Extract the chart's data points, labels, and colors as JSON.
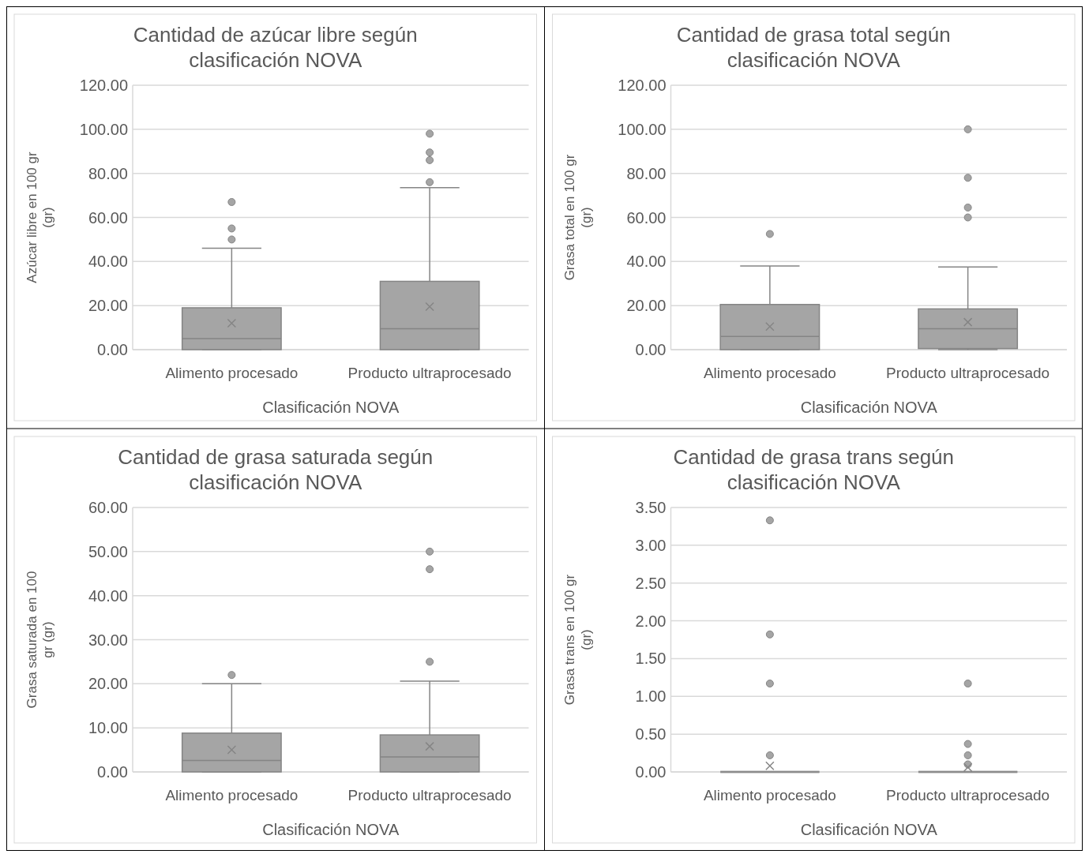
{
  "chart_data": [
    {
      "type": "box",
      "title": "Cantidad de azúcar libre según clasificación NOVA",
      "xlabel": "Clasificación NOVA",
      "ylabel": "Azúcar libre en 100 gr (gr)",
      "categories": [
        "Alimento procesado",
        "Producto ultraprocesado"
      ],
      "color": "#a5a5a5",
      "grid": "y",
      "ylim": [
        0,
        120
      ],
      "yticks": [
        {
          "value": 0,
          "label": "0.00"
        },
        {
          "value": 20,
          "label": "20.00"
        },
        {
          "value": 40,
          "label": "40.00"
        },
        {
          "value": 60,
          "label": "60.00"
        },
        {
          "value": 80,
          "label": "80.00"
        },
        {
          "value": 100,
          "label": "100.00"
        },
        {
          "value": 120,
          "label": "120.00"
        }
      ],
      "boxes": [
        {
          "low": 0,
          "q1": 0,
          "median": 5,
          "q3": 19,
          "high": 46,
          "mean": 12,
          "outliers": [
            50,
            55,
            67
          ]
        },
        {
          "low": 0,
          "q1": 0,
          "median": 9.5,
          "q3": 31,
          "high": 73.5,
          "mean": 19.5,
          "outliers": [
            76,
            86,
            89.5,
            98
          ]
        }
      ]
    },
    {
      "type": "box",
      "title": "Cantidad de grasa total según clasificación NOVA",
      "xlabel": "Clasificación NOVA",
      "ylabel": "Grasa total en 100 gr (gr)",
      "categories": [
        "Alimento procesado",
        "Producto ultraprocesado"
      ],
      "color": "#a5a5a5",
      "grid": "y",
      "ylim": [
        0,
        120
      ],
      "yticks": [
        {
          "value": 0,
          "label": "0.00"
        },
        {
          "value": 20,
          "label": "20.00"
        },
        {
          "value": 40,
          "label": "40.00"
        },
        {
          "value": 60,
          "label": "60.00"
        },
        {
          "value": 80,
          "label": "80.00"
        },
        {
          "value": 100,
          "label": "100.00"
        },
        {
          "value": 120,
          "label": "120.00"
        }
      ],
      "boxes": [
        {
          "low": 0,
          "q1": 0,
          "median": 6,
          "q3": 20.5,
          "high": 38,
          "mean": 10.5,
          "outliers": [
            52.5
          ]
        },
        {
          "low": 0,
          "q1": 0.5,
          "median": 9.5,
          "q3": 18.5,
          "high": 37.5,
          "mean": 12.5,
          "outliers": [
            60,
            64.5,
            78,
            100
          ]
        }
      ]
    },
    {
      "type": "box",
      "title": "Cantidad de grasa saturada según clasificación NOVA",
      "xlabel": "Clasificación NOVA",
      "ylabel": "Grasa saturada en 100 gr (gr)",
      "categories": [
        "Alimento procesado",
        "Producto ultraprocesado"
      ],
      "color": "#a5a5a5",
      "grid": "y",
      "ylim": [
        0,
        60
      ],
      "yticks": [
        {
          "value": 0,
          "label": "0.00"
        },
        {
          "value": 10,
          "label": "10.00"
        },
        {
          "value": 20,
          "label": "20.00"
        },
        {
          "value": 30,
          "label": "30.00"
        },
        {
          "value": 40,
          "label": "40.00"
        },
        {
          "value": 50,
          "label": "50.00"
        },
        {
          "value": 60,
          "label": "60.00"
        }
      ],
      "boxes": [
        {
          "low": 0,
          "q1": 0,
          "median": 2.6,
          "q3": 8.8,
          "high": 20,
          "mean": 5,
          "outliers": [
            22
          ]
        },
        {
          "low": 0,
          "q1": 0,
          "median": 3.4,
          "q3": 8.4,
          "high": 20.6,
          "mean": 5.8,
          "outliers": [
            25,
            46,
            50
          ]
        }
      ]
    },
    {
      "type": "box",
      "title": "Cantidad de grasa trans según clasificación NOVA",
      "xlabel": "Clasificación NOVA",
      "ylabel": "Grasa trans en 100 gr (gr)",
      "categories": [
        "Alimento procesado",
        "Producto ultraprocesado"
      ],
      "color": "#a5a5a5",
      "grid": "y",
      "ylim": [
        0,
        3.5
      ],
      "yticks": [
        {
          "value": 0,
          "label": "0.00"
        },
        {
          "value": 0.5,
          "label": "0.50"
        },
        {
          "value": 1,
          "label": "1.00"
        },
        {
          "value": 1.5,
          "label": "1.50"
        },
        {
          "value": 2,
          "label": "2.00"
        },
        {
          "value": 2.5,
          "label": "2.50"
        },
        {
          "value": 3,
          "label": "3.00"
        },
        {
          "value": 3.5,
          "label": "3.50"
        }
      ],
      "boxes": [
        {
          "low": 0,
          "q1": 0,
          "median": 0,
          "q3": 0,
          "high": 0,
          "mean": 0.08,
          "outliers": [
            0.22,
            1.17,
            1.82,
            3.33
          ]
        },
        {
          "low": 0,
          "q1": 0,
          "median": 0,
          "q3": 0,
          "high": 0,
          "mean": 0.06,
          "outliers": [
            0.1,
            0.22,
            0.37,
            1.17
          ]
        }
      ]
    }
  ]
}
